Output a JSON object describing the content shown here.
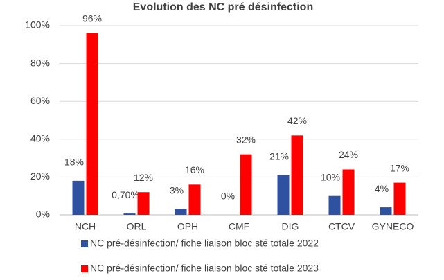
{
  "chart_data": {
    "type": "bar",
    "title": "Evolution des NC pré désinfection",
    "categories": [
      "NCH",
      "ORL",
      "OPH",
      "CMF",
      "DIG",
      "CTCV",
      "GYNECO"
    ],
    "series": [
      {
        "name": "NC pré-désinfection/ fiche liaison bloc sté totale 2022",
        "color": "#2f52a0",
        "values": [
          18,
          0.7,
          3,
          0,
          21,
          10,
          4
        ],
        "value_labels": [
          "18%",
          "0,70%",
          "3%",
          "0%",
          "21%",
          "10%",
          "4%"
        ]
      },
      {
        "name": "NC pré-désinfection/ fiche liaison bloc sté totale 2023",
        "color": "#ff0000",
        "values": [
          96,
          12,
          16,
          32,
          42,
          24,
          17
        ],
        "value_labels": [
          "96%",
          "12%",
          "16%",
          "32%",
          "42%",
          "24%",
          "17%"
        ]
      }
    ],
    "ylim": [
      0,
      100
    ],
    "yticks": [
      {
        "value": 0,
        "label": "0%"
      },
      {
        "value": 20,
        "label": "20%"
      },
      {
        "value": 40,
        "label": "40%"
      },
      {
        "value": 60,
        "label": "60%"
      },
      {
        "value": 80,
        "label": "80%"
      },
      {
        "value": 100,
        "label": "100%"
      }
    ],
    "grid": true
  }
}
